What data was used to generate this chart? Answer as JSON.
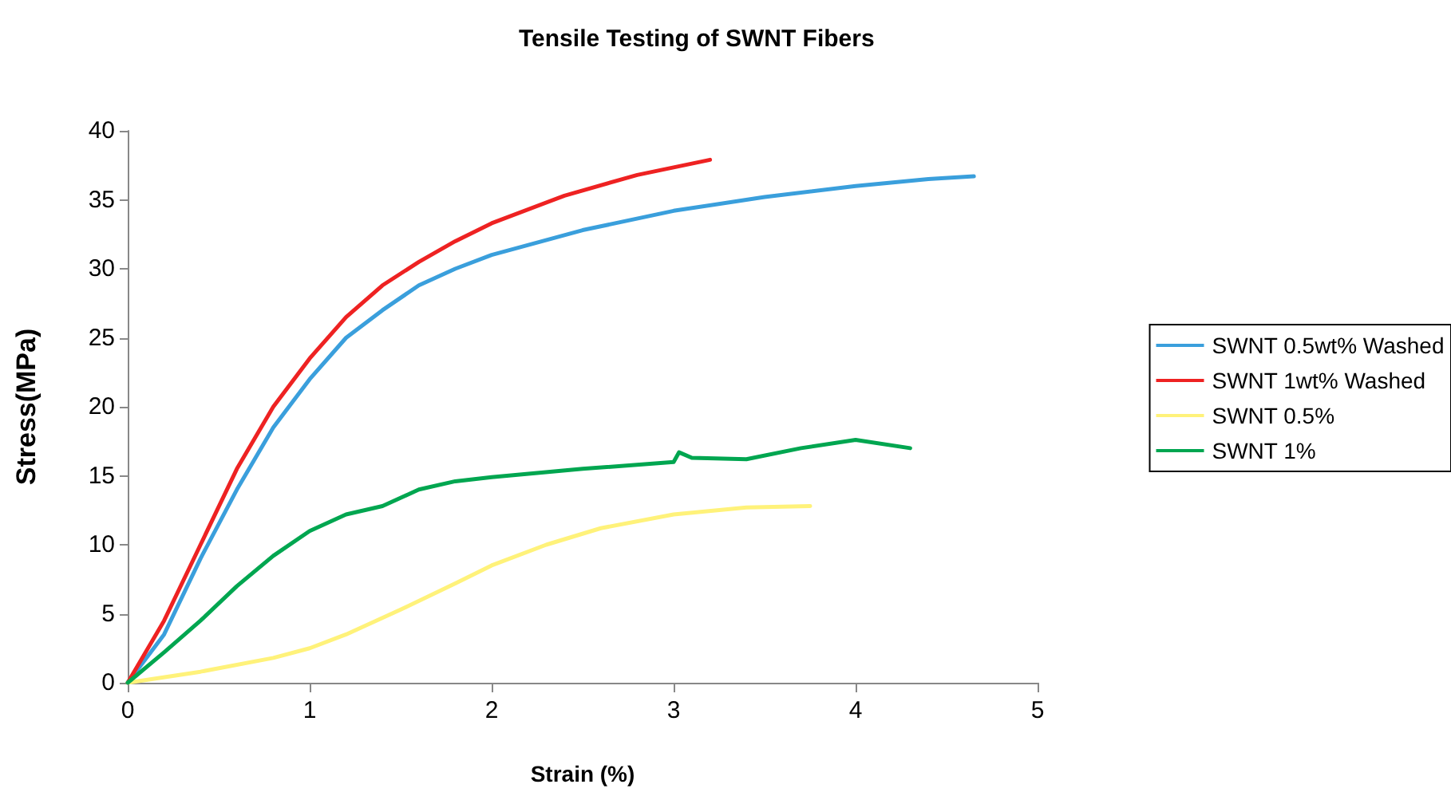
{
  "chart_data": {
    "type": "line",
    "title": "Tensile Testing of SWNT Fibers",
    "xlabel": "Strain (%)",
    "ylabel": "Stress(MPa)",
    "xlim": [
      0,
      5
    ],
    "xticks": [
      0,
      1,
      2,
      3,
      4,
      5
    ],
    "ylim": [
      0,
      40
    ],
    "yticks": [
      0,
      5,
      10,
      15,
      20,
      25,
      30,
      35,
      40
    ],
    "grid": false,
    "legend": "right",
    "series": [
      {
        "name": "SWNT 0.5wt% Washed",
        "color": "#3a9fdc",
        "x": [
          0,
          0.2,
          0.4,
          0.6,
          0.8,
          1,
          1.2,
          1.4,
          1.6,
          1.8,
          2,
          2.5,
          3,
          3.5,
          4,
          4.4,
          4.65
        ],
        "values": [
          0,
          3.5,
          9,
          14,
          18.5,
          22,
          25,
          27,
          28.8,
          30,
          31,
          32.8,
          34.2,
          35.2,
          36,
          36.5,
          36.7
        ]
      },
      {
        "name": "SWNT 1wt% Washed",
        "color": "#ee2222",
        "x": [
          0,
          0.2,
          0.4,
          0.6,
          0.8,
          1,
          1.2,
          1.4,
          1.6,
          1.8,
          2,
          2.4,
          2.8,
          3.2
        ],
        "values": [
          0,
          4.5,
          10,
          15.5,
          20,
          23.5,
          26.5,
          28.8,
          30.5,
          32,
          33.3,
          35.3,
          36.8,
          37.9
        ]
      },
      {
        "name": "SWNT 0.5%",
        "color": "#fff27a",
        "x": [
          0,
          0.4,
          0.8,
          1,
          1.2,
          1.5,
          1.8,
          2,
          2.3,
          2.6,
          3,
          3.4,
          3.75
        ],
        "values": [
          0,
          0.8,
          1.8,
          2.5,
          3.5,
          5.3,
          7.2,
          8.5,
          10,
          11.2,
          12.2,
          12.7,
          12.8
        ]
      },
      {
        "name": "SWNT 1%",
        "color": "#00a650",
        "x": [
          0,
          0.2,
          0.4,
          0.6,
          0.8,
          1,
          1.2,
          1.4,
          1.6,
          1.8,
          2,
          2.5,
          3,
          3.03,
          3.1,
          3.4,
          3.7,
          4,
          4.3
        ],
        "values": [
          0,
          2.2,
          4.5,
          7,
          9.2,
          11,
          12.2,
          12.8,
          14,
          14.6,
          14.9,
          15.5,
          16,
          16.7,
          16.3,
          16.2,
          17,
          17.6,
          17
        ]
      }
    ]
  }
}
